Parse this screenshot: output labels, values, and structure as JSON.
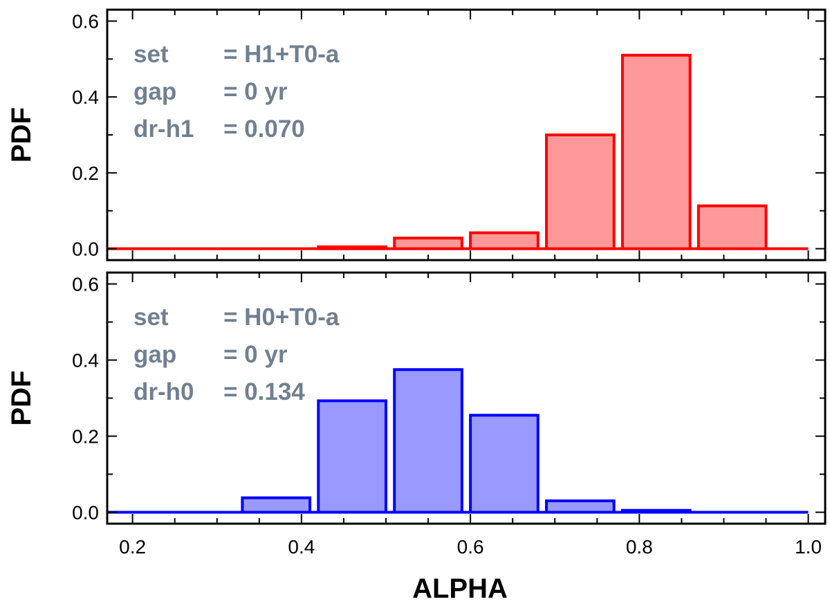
{
  "figure": {
    "xlabel": "ALPHA",
    "x_ticks": [
      "0.2",
      "0.4",
      "0.6",
      "0.8",
      "1.0"
    ],
    "y_ticks": [
      "0.0",
      "0.2",
      "0.4",
      "0.6"
    ]
  },
  "chart_data": [
    {
      "type": "bar",
      "title": "",
      "xlabel": "ALPHA",
      "ylabel": "PDF",
      "xlim": [
        0.17,
        1.02
      ],
      "ylim": [
        -0.03,
        0.63
      ],
      "x_ticks": [
        0.2,
        0.4,
        0.6,
        0.8,
        1.0
      ],
      "y_ticks": [
        0.0,
        0.2,
        0.4,
        0.6
      ],
      "baseline": [
        0.17,
        1.0
      ],
      "bins": [
        {
          "x0": 0.42,
          "x1": 0.5,
          "value": 0.005
        },
        {
          "x0": 0.51,
          "x1": 0.59,
          "value": 0.028
        },
        {
          "x0": 0.6,
          "x1": 0.68,
          "value": 0.042
        },
        {
          "x0": 0.69,
          "x1": 0.77,
          "value": 0.3
        },
        {
          "x0": 0.78,
          "x1": 0.86,
          "value": 0.51
        },
        {
          "x0": 0.87,
          "x1": 0.95,
          "value": 0.113
        }
      ],
      "stroke_color": "#ff0000",
      "fill_color": "#ff9999",
      "annotation": [
        {
          "key": "set",
          "value": "= H1+T0-a"
        },
        {
          "key": "gap",
          "value": "= 0 yr"
        },
        {
          "key": "dr-h1",
          "value": "= 0.070"
        }
      ]
    },
    {
      "type": "bar",
      "title": "",
      "xlabel": "ALPHA",
      "ylabel": "PDF",
      "xlim": [
        0.17,
        1.02
      ],
      "ylim": [
        -0.03,
        0.63
      ],
      "x_ticks": [
        0.2,
        0.4,
        0.6,
        0.8,
        1.0
      ],
      "y_ticks": [
        0.0,
        0.2,
        0.4,
        0.6
      ],
      "baseline": [
        0.17,
        1.0
      ],
      "bins": [
        {
          "x0": 0.33,
          "x1": 0.41,
          "value": 0.038
        },
        {
          "x0": 0.42,
          "x1": 0.5,
          "value": 0.293
        },
        {
          "x0": 0.51,
          "x1": 0.59,
          "value": 0.375
        },
        {
          "x0": 0.6,
          "x1": 0.68,
          "value": 0.255
        },
        {
          "x0": 0.69,
          "x1": 0.77,
          "value": 0.03
        },
        {
          "x0": 0.78,
          "x1": 0.86,
          "value": 0.005
        }
      ],
      "stroke_color": "#0000ff",
      "fill_color": "#9999ff",
      "annotation": [
        {
          "key": "set",
          "value": "= H0+T0-a"
        },
        {
          "key": "gap",
          "value": "= 0 yr"
        },
        {
          "key": "dr-h0",
          "value": "= 0.134"
        }
      ]
    }
  ]
}
